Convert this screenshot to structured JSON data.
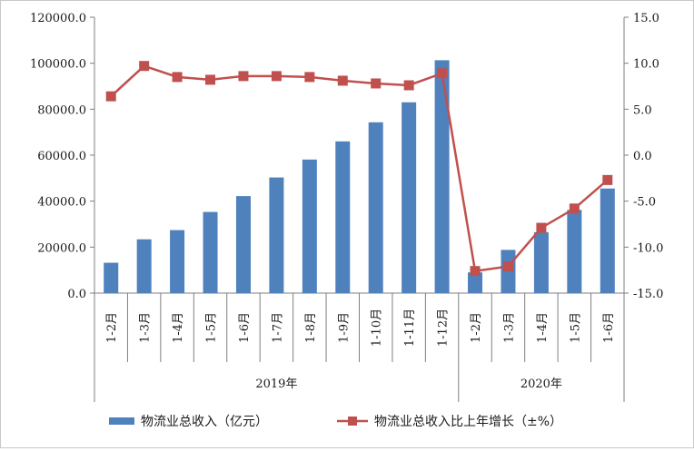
{
  "chart_data": {
    "type": "bar",
    "categories": [
      "1-2月",
      "1-3月",
      "1-4月",
      "1-5月",
      "1-6月",
      "1-7月",
      "1-8月",
      "1-9月",
      "1-10月",
      "1-11月",
      "1-12月",
      "1-2月",
      "1-3月",
      "1-4月",
      "1-5月",
      "1-6月"
    ],
    "groups": [
      {
        "label": "2019年",
        "count": 11
      },
      {
        "label": "2020年",
        "count": 5
      }
    ],
    "series": [
      {
        "name": "物流业总收入（亿元）",
        "type": "bar",
        "axis": "left",
        "color": "#4f81bd",
        "values": [
          13200,
          23400,
          27400,
          35300,
          42200,
          50300,
          58100,
          66000,
          74300,
          83000,
          101300,
          9000,
          18800,
          26500,
          36200,
          45500
        ]
      },
      {
        "name": "物流业总收入比上年增长（±%）",
        "type": "line",
        "axis": "right",
        "color": "#c0504d",
        "marker": "square",
        "values": [
          6.4,
          9.7,
          8.5,
          8.2,
          8.6,
          8.6,
          8.5,
          8.1,
          7.8,
          7.6,
          8.9,
          -12.6,
          -12.1,
          -7.9,
          -5.8,
          -2.7
        ]
      }
    ],
    "y_left": {
      "ylim": [
        0,
        120000
      ],
      "ticks": [
        "0.0",
        "20000.0",
        "40000.0",
        "60000.0",
        "80000.0",
        "100000.0",
        "120000.0"
      ]
    },
    "y_right": {
      "ylim": [
        -15,
        15
      ],
      "ticks": [
        "-15.0",
        "-10.0",
        "-5.0",
        "0.0",
        "5.0",
        "10.0",
        "15.0"
      ]
    },
    "grid": false,
    "legend_position": "bottom"
  }
}
